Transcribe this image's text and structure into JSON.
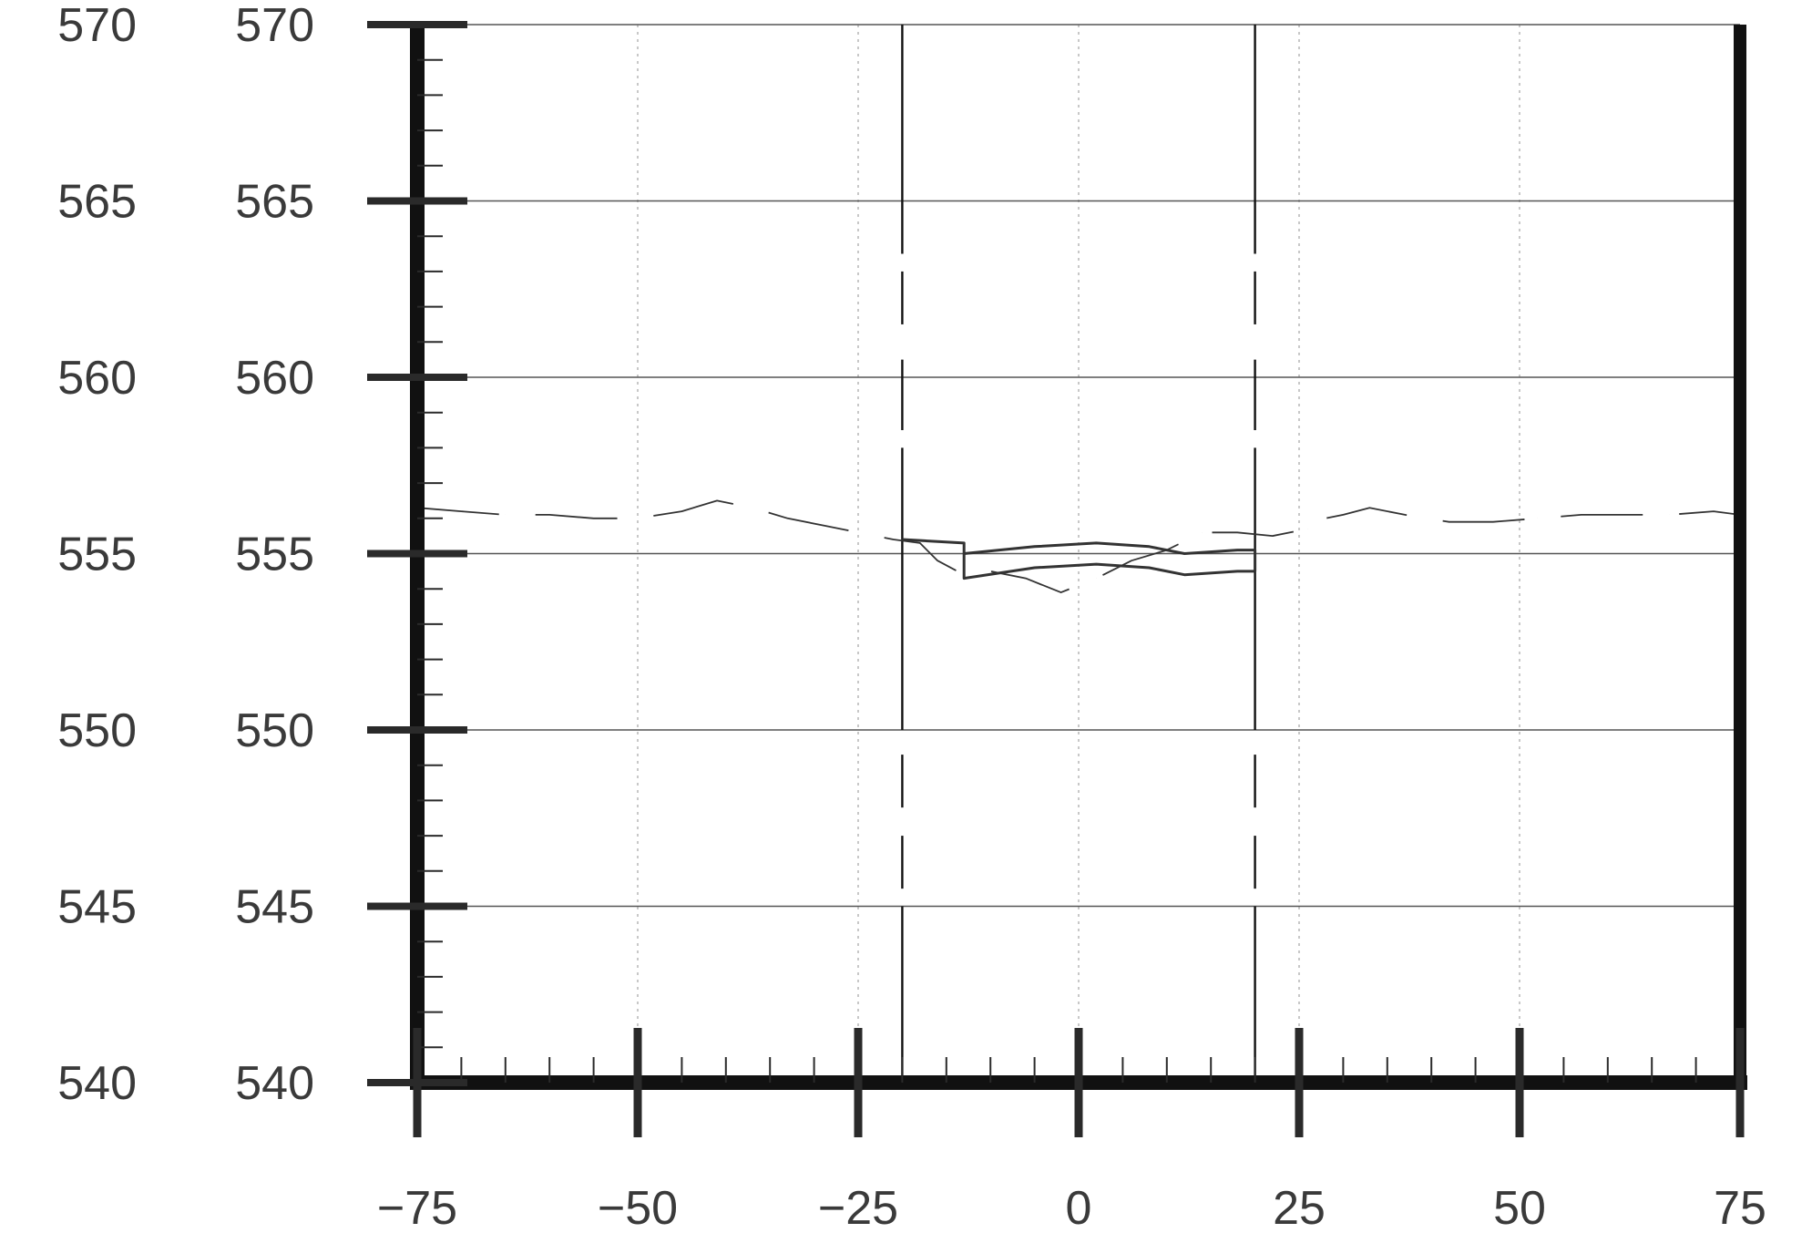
{
  "chart_data": {
    "type": "line",
    "title": "",
    "xlabel": "",
    "ylabel": "",
    "xlim": [
      -75,
      75
    ],
    "ylim": [
      540,
      570
    ],
    "x_ticks": [
      "−75",
      "−50",
      "−25",
      "0",
      "25",
      "50",
      "75"
    ],
    "y_ticks_left": [
      "570",
      "565",
      "560",
      "555",
      "550",
      "545",
      "540"
    ],
    "y_ticks_right": [
      "570",
      "565",
      "560",
      "555",
      "550",
      "545",
      "540"
    ],
    "x_tick_values": [
      -75,
      -50,
      -25,
      0,
      25,
      50,
      75
    ],
    "y_tick_values": [
      570,
      565,
      560,
      555,
      550,
      545,
      540
    ],
    "grid": true,
    "vertical_markers": [
      -20,
      20
    ],
    "series": [
      {
        "style": "dashed",
        "x": [
          -75,
          -70,
          -65,
          -60,
          -55,
          -50,
          -45,
          -41,
          -37,
          -33,
          -29,
          -25,
          -21,
          -18,
          -16,
          -13,
          -10,
          -6,
          -2,
          2,
          6,
          10,
          14,
          18,
          22,
          26,
          28,
          30,
          33,
          37,
          42,
          47,
          52,
          57,
          62,
          67,
          72,
          75
        ],
        "y": [
          556.3,
          556.2,
          556.1,
          556.1,
          556.0,
          556.0,
          556.2,
          556.5,
          556.3,
          556.0,
          555.8,
          555.6,
          555.4,
          555.3,
          554.8,
          554.4,
          554.5,
          554.3,
          553.9,
          554.3,
          554.8,
          555.1,
          555.6,
          555.6,
          555.5,
          555.7,
          556.0,
          556.1,
          556.3,
          556.1,
          555.9,
          555.9,
          556.0,
          556.1,
          556.1,
          556.1,
          556.2,
          556.1
        ]
      },
      {
        "style": "solid",
        "x": [
          -20,
          -13,
          -13,
          -5,
          2,
          8,
          12,
          18,
          20,
          20
        ],
        "y": [
          555.4,
          555.3,
          555.0,
          555.2,
          555.3,
          555.2,
          555.0,
          555.1,
          555.1,
          554.5
        ]
      },
      {
        "style": "solid",
        "x": [
          -13,
          -13,
          -5,
          2,
          8,
          12,
          18,
          20
        ],
        "y": [
          555.0,
          554.3,
          554.6,
          554.7,
          554.6,
          554.4,
          554.5,
          554.5
        ]
      }
    ],
    "colors": {
      "grid": "#555555",
      "axis": "#111111",
      "minor_grid": "#c8c8c8",
      "text": "#3a3a3a"
    }
  }
}
